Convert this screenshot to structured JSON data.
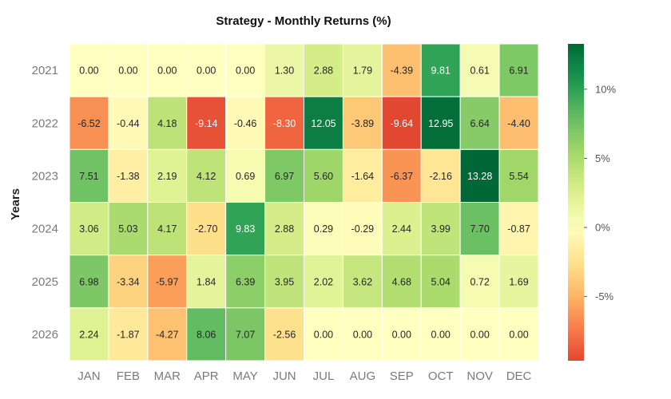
{
  "chart_data": {
    "type": "heatmap",
    "title": "Strategy - Monthly Returns (%)",
    "ylabel": "Years",
    "xlabel": "",
    "columns": [
      "JAN",
      "FEB",
      "MAR",
      "APR",
      "MAY",
      "JUN",
      "JUL",
      "AUG",
      "SEP",
      "OCT",
      "NOV",
      "DEC"
    ],
    "rows": [
      "2021",
      "2022",
      "2023",
      "2024",
      "2025",
      "2026"
    ],
    "values": [
      [
        0.0,
        0.0,
        0.0,
        0.0,
        0.0,
        1.3,
        2.88,
        1.79,
        -4.39,
        9.81,
        0.61,
        6.91
      ],
      [
        -6.52,
        -0.44,
        4.18,
        -9.14,
        -0.46,
        -8.3,
        12.05,
        -3.89,
        -9.64,
        12.95,
        6.64,
        -4.4
      ],
      [
        7.51,
        -1.38,
        2.19,
        4.12,
        0.69,
        6.97,
        5.6,
        -1.64,
        -6.37,
        -2.16,
        13.28,
        5.54
      ],
      [
        3.06,
        5.03,
        4.17,
        -2.7,
        9.83,
        2.88,
        0.29,
        -0.29,
        2.44,
        3.99,
        7.7,
        -0.87
      ],
      [
        6.98,
        -3.34,
        -5.97,
        1.84,
        6.39,
        3.95,
        2.02,
        3.62,
        4.68,
        5.04,
        0.72,
        1.69
      ],
      [
        2.24,
        -1.87,
        -4.27,
        8.06,
        7.07,
        -2.56,
        0.0,
        0.0,
        0.0,
        0.0,
        0.0,
        0.0
      ]
    ],
    "colorbar": {
      "min": -9.64,
      "max": 13.28,
      "ticks": [
        10,
        5,
        0,
        -5
      ],
      "tick_labels": [
        "10%",
        "5%",
        "0%",
        "-5%"
      ],
      "colormap": "RdYlGn",
      "center": 0
    },
    "grid": false
  }
}
